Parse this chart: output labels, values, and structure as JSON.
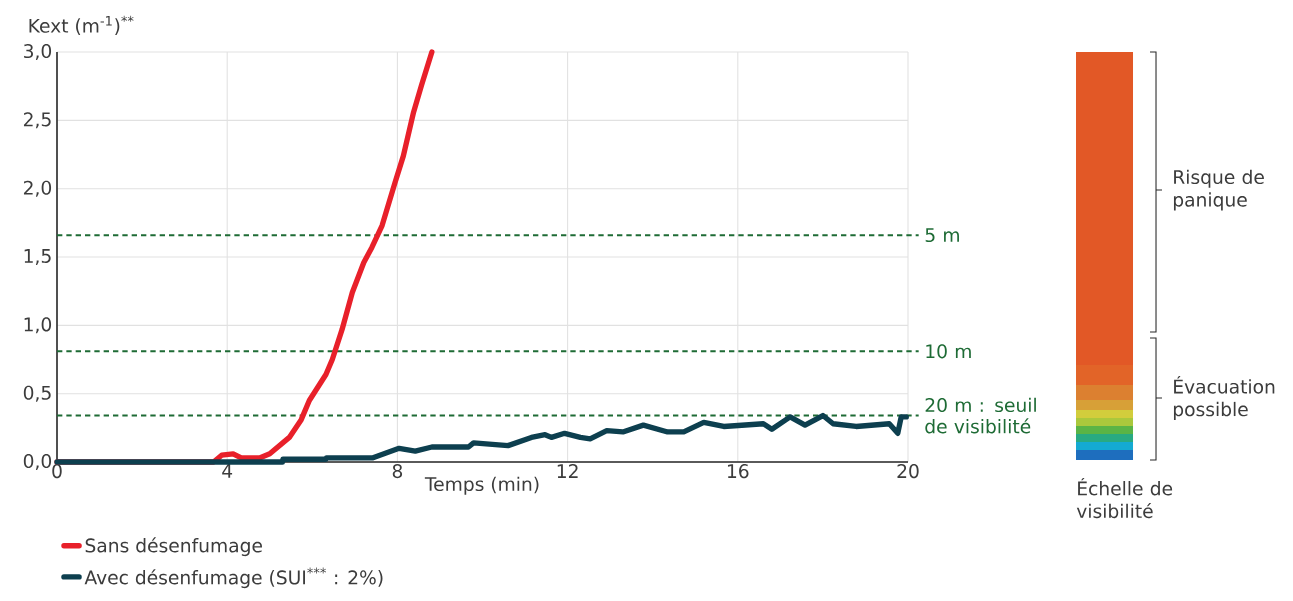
{
  "chart_data": {
    "type": "line",
    "ylabel": "Kext (m$^{-1}$)$^{**}$",
    "xlabel": "Temps (min)",
    "xlim": [
      0,
      20
    ],
    "xticks": [
      0,
      4,
      8,
      12,
      16,
      20
    ],
    "ylim": [
      0,
      3
    ],
    "yticks": [
      {
        "value": 0,
        "label": "0,0"
      },
      {
        "value": 0.5,
        "label": "0,5"
      },
      {
        "value": 1,
        "label": "1,0"
      },
      {
        "value": 1.5,
        "label": "1,5"
      },
      {
        "value": 2,
        "label": "2,0"
      },
      {
        "value": 2.5,
        "label": "2,5"
      },
      {
        "value": 3,
        "label": "3,0"
      }
    ],
    "grid": true,
    "legend": "bottom left",
    "marker": "none",
    "line_style": "solid",
    "series": [
      {
        "name": "Sans désenfumage",
        "color": "#e8202a",
        "x": [
          0,
          3.68,
          3.87,
          4.14,
          4.33,
          4.76,
          5.0,
          5.46,
          5.74,
          5.93,
          6.32,
          6.47,
          6.7,
          6.94,
          7.21,
          7.4,
          7.64,
          7.95,
          8.14,
          8.38,
          8.57,
          8.81
        ],
        "values": [
          0,
          0,
          0.05,
          0.06,
          0.03,
          0.03,
          0.06,
          0.18,
          0.31,
          0.45,
          0.64,
          0.75,
          0.97,
          1.24,
          1.46,
          1.57,
          1.73,
          2.05,
          2.24,
          2.56,
          2.76,
          3.0
        ]
      },
      {
        "name": "Avec désenfumage (SUI$^{***}$ : 2%)",
        "color": "#0d3f4f",
        "x": [
          0,
          5.3,
          5.31,
          6.32,
          6.33,
          7.41,
          8.04,
          8.42,
          8.81,
          9.67,
          9.79,
          10.6,
          11.15,
          11.47,
          11.62,
          11.93,
          12.3,
          12.53,
          12.92,
          13.3,
          13.78,
          14.35,
          14.73,
          15.2,
          15.67,
          16.6,
          16.8,
          17.23,
          17.58,
          18.0,
          18.24,
          18.78,
          19.56,
          19.76,
          19.84,
          19.96
        ],
        "values": [
          0,
          0,
          0.02,
          0.02,
          0.03,
          0.03,
          0.1,
          0.08,
          0.11,
          0.11,
          0.14,
          0.12,
          0.18,
          0.2,
          0.18,
          0.21,
          0.18,
          0.17,
          0.23,
          0.22,
          0.27,
          0.22,
          0.22,
          0.29,
          0.26,
          0.28,
          0.24,
          0.33,
          0.27,
          0.34,
          0.28,
          0.26,
          0.28,
          0.21,
          0.33,
          0.33
        ]
      }
    ],
    "ref_lines": [
      {
        "axis": "y",
        "value": 1.66,
        "label": "5 m",
        "color": "#1e6b35",
        "line_style": "dashed"
      },
      {
        "axis": "y",
        "value": 0.81,
        "label": "10 m",
        "color": "#1e6b35",
        "line_style": "dashed"
      },
      {
        "axis": "y",
        "value": 0.34,
        "label": "20 m : seuil de visibilité",
        "color": "#1e6b35",
        "line_style": "dashed"
      }
    ],
    "annotations": [
      "Risque de panique",
      "Évacuation possible",
      "Échelle de visibilité"
    ]
  }
}
